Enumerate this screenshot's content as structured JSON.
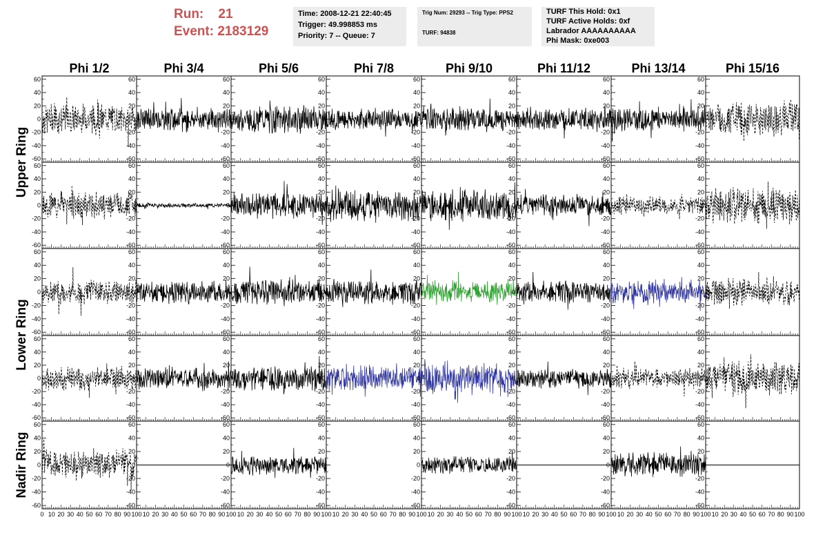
{
  "header": {
    "run_label": "Run:",
    "run_value": "21",
    "event_label": "Event:",
    "event_value": "2183129",
    "time": "Time: 2008-12-21 22:40:45",
    "trigger": "Trigger: 49.998853 ms",
    "priority": "Priority: 7 -- Queue: 7",
    "trig_num": "Trig Num: 29293 -- Trig Type: PPS2",
    "turf": "TURF: 94838",
    "turf_hold": "TURF This Hold: 0x1",
    "turf_active": "TURF Active Holds: 0xf",
    "labrador": "Labrador AAAAAAAAAA",
    "phi_mask": "Phi Mask: 0xe003"
  },
  "colors": {
    "black": "#000000",
    "green": "#2ca02c",
    "blue": "#2f35a0",
    "run_text": "#d05050",
    "info_bg": "#ececec"
  },
  "chart_data": {
    "type": "line",
    "columns": [
      "Phi 1/2",
      "Phi 3/4",
      "Phi 5/6",
      "Phi 7/8",
      "Phi 9/10",
      "Phi 11/12",
      "Phi 13/14",
      "Phi 15/16"
    ],
    "rows": [
      "Upper Ring",
      "Lower Ring",
      "Nadir Ring"
    ],
    "ylim": [
      -65,
      65
    ],
    "yticks": [
      -60,
      -40,
      -20,
      0,
      20,
      40,
      60
    ],
    "xlim": [
      0,
      100
    ],
    "xticks": [
      0,
      10,
      20,
      30,
      40,
      50,
      60,
      70,
      80,
      90,
      100
    ],
    "panels": [
      [
        {
          "style": "dashed",
          "color": "black",
          "amp": 21
        },
        {
          "style": "solid",
          "color": "black",
          "amp": 16
        },
        {
          "style": "solid",
          "color": "black",
          "amp": 19
        },
        {
          "style": "solid",
          "color": "black",
          "amp": 15
        },
        {
          "style": "solid",
          "color": "black",
          "amp": 17
        },
        {
          "style": "solid",
          "color": "black",
          "amp": 16
        },
        {
          "style": "solid",
          "color": "black",
          "amp": 17
        },
        {
          "style": "dashed",
          "color": "black",
          "amp": 24
        }
      ],
      [
        {
          "style": "dashed",
          "color": "black",
          "amp": 20
        },
        {
          "style": "solid",
          "color": "black",
          "amp": 3
        },
        {
          "style": "solid",
          "color": "black",
          "amp": 18
        },
        {
          "style": "solid",
          "color": "black",
          "amp": 21
        },
        {
          "style": "solid",
          "color": "black",
          "amp": 22
        },
        {
          "style": "solid",
          "color": "black",
          "amp": 15
        },
        {
          "style": "dashed",
          "color": "black",
          "amp": 13
        },
        {
          "style": "dashed",
          "color": "black",
          "amp": 26
        }
      ],
      [
        {
          "style": "dashed",
          "color": "black",
          "amp": 17
        },
        {
          "style": "solid",
          "color": "black",
          "amp": 16
        },
        {
          "style": "solid",
          "color": "black",
          "amp": 19
        },
        {
          "style": "solid",
          "color": "black",
          "amp": 17
        },
        {
          "style": "solid",
          "color": "green",
          "amp": 15
        },
        {
          "style": "solid",
          "color": "black",
          "amp": 16
        },
        {
          "style": "solid",
          "color": "blue",
          "amp": 17
        },
        {
          "style": "dashed",
          "color": "black",
          "amp": 18
        }
      ],
      [
        {
          "style": "dashed",
          "color": "black",
          "amp": 17
        },
        {
          "style": "solid",
          "color": "black",
          "amp": 15
        },
        {
          "style": "solid",
          "color": "black",
          "amp": 18
        },
        {
          "style": "solid",
          "color": "blue",
          "amp": 20
        },
        {
          "style": "solid",
          "color": "blue",
          "amp": 22
        },
        {
          "style": "solid",
          "color": "black",
          "amp": 14
        },
        {
          "style": "dashed",
          "color": "black",
          "amp": 14
        },
        {
          "style": "dashed",
          "color": "black",
          "amp": 24
        }
      ],
      [
        {
          "style": "dashed",
          "color": "black",
          "amp": 21
        },
        {
          "style": "flat",
          "color": "black",
          "amp": 0
        },
        {
          "style": "solid",
          "color": "black",
          "amp": 13
        },
        {
          "style": "empty",
          "color": "black",
          "amp": 0
        },
        {
          "style": "solid",
          "color": "black",
          "amp": 12
        },
        {
          "style": "flat",
          "color": "black",
          "amp": 0
        },
        {
          "style": "solid",
          "color": "black",
          "amp": 17
        },
        {
          "style": "flat",
          "color": "black",
          "amp": 0
        }
      ]
    ]
  }
}
